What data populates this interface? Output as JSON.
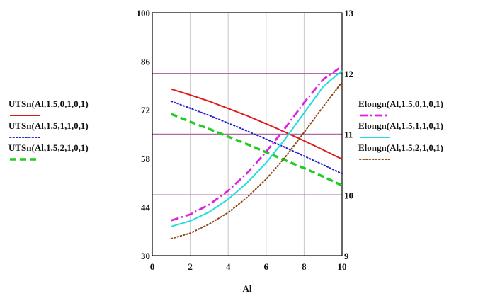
{
  "chart_data": {
    "type": "line",
    "title": "",
    "xlabel": "Al",
    "ylabel": "",
    "y2label": "",
    "xlim": [
      0,
      10
    ],
    "ylim": [
      30,
      100
    ],
    "y2lim": [
      9,
      13
    ],
    "x_ticks": [
      0,
      2,
      4,
      6,
      8,
      10
    ],
    "y_ticks": [
      30,
      44,
      58,
      72,
      86,
      100
    ],
    "y2_ticks": [
      9,
      10,
      11,
      12,
      13
    ],
    "grid": "vertical",
    "reference_lines_y2": [
      10,
      11,
      12
    ],
    "series": [
      {
        "name": "UTSn(Al,1.5,0,1,0,1)",
        "axis": "left",
        "color": "#dd1c1c",
        "dash": "solid",
        "x": [
          1,
          2,
          3,
          4,
          5,
          6,
          7,
          8,
          9,
          10
        ],
        "y": [
          78,
          76.3,
          74.5,
          72.4,
          70.3,
          68,
          65.6,
          63.1,
          60.5,
          57.8
        ]
      },
      {
        "name": "UTSn(Al,1.5,1,1,0,1)",
        "axis": "left",
        "color": "#2222cc",
        "dash": "dotted",
        "x": [
          1,
          2,
          3,
          4,
          5,
          6,
          7,
          8,
          9,
          10
        ],
        "y": [
          74.5,
          72.5,
          70.4,
          68.2,
          65.9,
          63.6,
          61.2,
          58.7,
          56.2,
          53.6
        ]
      },
      {
        "name": "UTSn(Al,1.5,2,1,0,1)",
        "axis": "left",
        "color": "#22cc22",
        "dash": "dashed",
        "x": [
          1,
          2,
          3,
          4,
          5,
          6,
          7,
          8,
          9,
          10
        ],
        "y": [
          70.8,
          68.6,
          66.5,
          64.3,
          62.1,
          59.8,
          57.5,
          55.2,
          52.8,
          50.2
        ]
      },
      {
        "name": "Elongn(Al,1.5,0,1,0,1)",
        "axis": "right",
        "color": "#dd22dd",
        "dash": "dashdot",
        "x": [
          1,
          2,
          3,
          4,
          5,
          6,
          7,
          8,
          9,
          10
        ],
        "y": [
          9.58,
          9.68,
          9.84,
          10.07,
          10.36,
          10.71,
          11.1,
          11.52,
          11.9,
          12.12
        ]
      },
      {
        "name": "Elongn(Al,1.5,1,1,0,1)",
        "axis": "right",
        "color": "#22dddd",
        "dash": "solid",
        "x": [
          1,
          2,
          3,
          4,
          5,
          6,
          7,
          8,
          9,
          10
        ],
        "y": [
          9.48,
          9.57,
          9.72,
          9.93,
          10.2,
          10.53,
          10.92,
          11.35,
          11.78,
          12.05
        ]
      },
      {
        "name": "Elongn(Al,1.5,2,1,0,1)",
        "axis": "right",
        "color": "#8b4513",
        "dash": "dotted",
        "x": [
          1,
          2,
          3,
          4,
          5,
          6,
          7,
          8,
          9,
          10
        ],
        "y": [
          9.28,
          9.37,
          9.52,
          9.71,
          9.96,
          10.26,
          10.62,
          11.03,
          11.45,
          11.86
        ]
      }
    ]
  }
}
